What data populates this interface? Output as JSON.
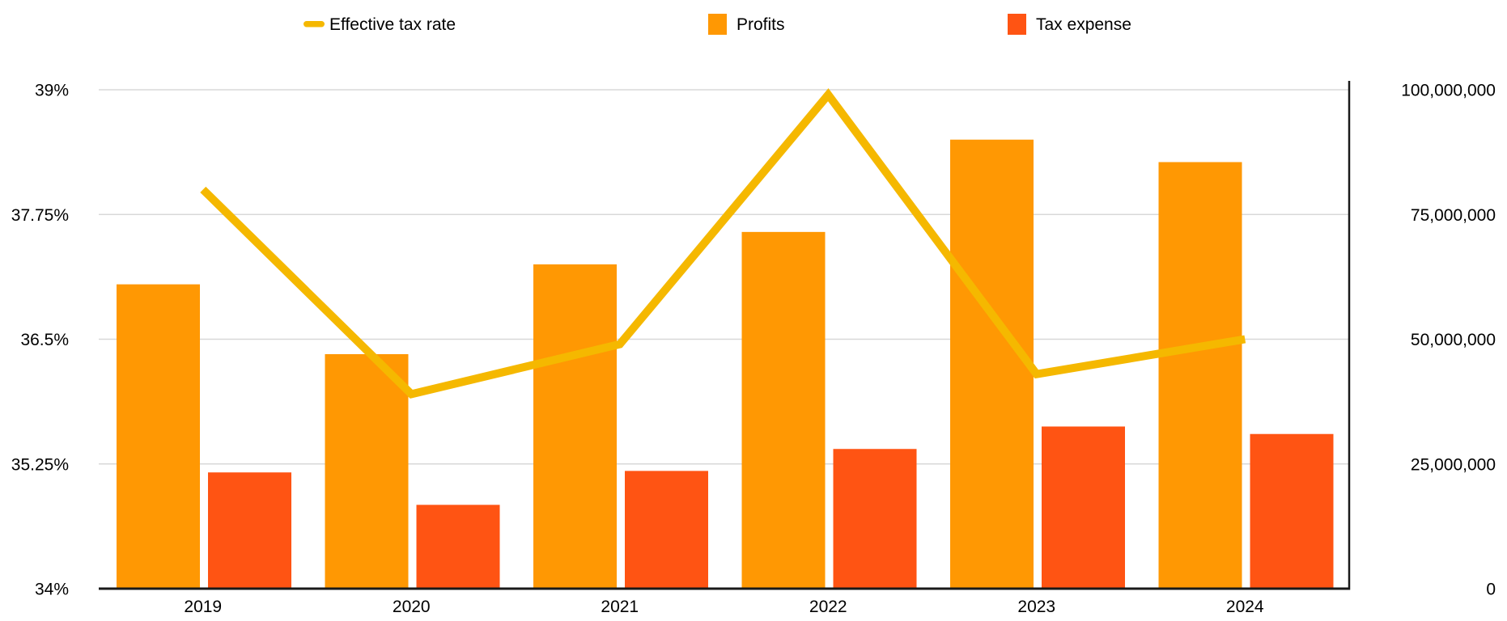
{
  "chart_data": {
    "type": "combo",
    "title": "",
    "categories": [
      "2019",
      "2020",
      "2021",
      "2022",
      "2023",
      "2024"
    ],
    "series": [
      {
        "name": "Effective tax rate",
        "type": "line",
        "axis": "left",
        "unit": "%",
        "color": "#F5B800",
        "values": [
          38.0,
          35.95,
          36.45,
          38.95,
          36.15,
          36.5
        ]
      },
      {
        "name": "Profits",
        "type": "bar",
        "axis": "right",
        "color": "#FF9803",
        "values": [
          61000000,
          47000000,
          65000000,
          71500000,
          90000000,
          85500000
        ]
      },
      {
        "name": "Tax expense",
        "type": "bar",
        "axis": "right",
        "color": "#FF5413",
        "values": [
          23300000,
          16800000,
          23600000,
          28000000,
          32500000,
          31000000
        ]
      }
    ],
    "left_axis": {
      "range": [
        34,
        39
      ],
      "ticks": [
        {
          "label": "39%",
          "value": 39
        },
        {
          "label": "37.75%",
          "value": 37.75
        },
        {
          "label": "36.5%",
          "value": 36.5
        },
        {
          "label": "35.25%",
          "value": 35.25
        },
        {
          "label": "34%",
          "value": 34
        }
      ]
    },
    "right_axis": {
      "range": [
        0,
        100000000
      ],
      "ticks": [
        {
          "label": "100,000,000",
          "value": 100000000
        },
        {
          "label": "75,000,000",
          "value": 75000000
        },
        {
          "label": "50,000,000",
          "value": 50000000
        },
        {
          "label": "25,000,000",
          "value": 25000000
        },
        {
          "label": "0",
          "value": 0
        }
      ]
    },
    "legend": {
      "position": "top",
      "items": [
        {
          "label": "Effective tax rate",
          "swatch": "line-dash",
          "color": "#F5B800"
        },
        {
          "label": "Profits",
          "swatch": "square",
          "color": "#FF9803"
        },
        {
          "label": "Tax expense",
          "swatch": "square",
          "color": "#FF5413"
        }
      ]
    },
    "grid": true
  },
  "colors": {
    "background": "#FFFFFF",
    "gridline": "#D8D8D8",
    "axis_line": "#1A1A1A",
    "text": "#000000"
  }
}
